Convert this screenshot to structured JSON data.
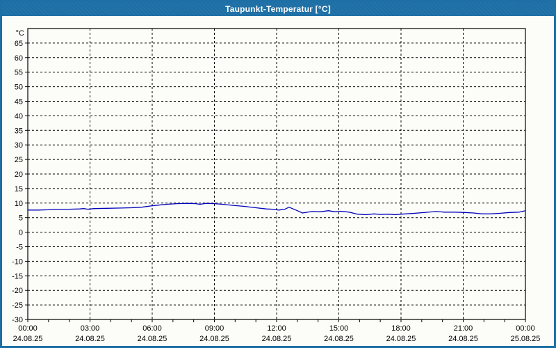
{
  "window": {
    "title": "Taupunkt-Temperatur [°C]"
  },
  "colors": {
    "titlebar_bg": "#1d6fa5",
    "window_border": "#1d6fa5",
    "plot_bg": "#fcfdf8",
    "grid": "#000000",
    "frame": "#000000",
    "label_text": "#000000",
    "series_line": "#0000bb"
  },
  "chart_data": {
    "type": "line",
    "title": "Taupunkt-Temperatur [°C]",
    "y_unit_label": "°C",
    "ylim": [
      -30,
      70
    ],
    "xlim_hours": [
      0,
      24
    ],
    "y_tick_step": 5,
    "y_label_min": -30,
    "y_label_max": 65,
    "x_grid_hours": [
      3,
      6,
      9,
      12,
      15,
      18,
      21
    ],
    "x_minor_tick_step_hours": 1,
    "grid_style": "dashed",
    "legend": "none",
    "x_ticks": [
      {
        "h": 0,
        "time": "00:00",
        "date": "24.08.25"
      },
      {
        "h": 3,
        "time": "03:00",
        "date": "24.08.25"
      },
      {
        "h": 6,
        "time": "06:00",
        "date": "24.08.25"
      },
      {
        "h": 9,
        "time": "09:00",
        "date": "24.08.25"
      },
      {
        "h": 12,
        "time": "12:00",
        "date": "24.08.25"
      },
      {
        "h": 15,
        "time": "15:00",
        "date": "24.08.25"
      },
      {
        "h": 18,
        "time": "18:00",
        "date": "24.08.25"
      },
      {
        "h": 21,
        "time": "21:00",
        "date": "24.08.25"
      },
      {
        "h": 24,
        "time": "00:00",
        "date": "25.08.25"
      }
    ],
    "series": [
      {
        "name": "Taupunkt-Temperatur",
        "color": "#0000bb",
        "points": [
          [
            0,
            7.6
          ],
          [
            0.5,
            7.6
          ],
          [
            1,
            7.7
          ],
          [
            1.3,
            7.9
          ],
          [
            2,
            7.9
          ],
          [
            2.5,
            8.0
          ],
          [
            2.7,
            8.1
          ],
          [
            2.9,
            7.9
          ],
          [
            3.2,
            8.1
          ],
          [
            3.8,
            8.2
          ],
          [
            4.5,
            8.3
          ],
          [
            5,
            8.4
          ],
          [
            5.5,
            8.6
          ],
          [
            5.9,
            9.0
          ],
          [
            6.3,
            9.3
          ],
          [
            6.7,
            9.6
          ],
          [
            7.2,
            9.8
          ],
          [
            7.7,
            9.9
          ],
          [
            8.1,
            9.8
          ],
          [
            8.3,
            9.6
          ],
          [
            8.6,
            9.9
          ],
          [
            9,
            9.8
          ],
          [
            9.4,
            9.6
          ],
          [
            9.9,
            9.2
          ],
          [
            10.4,
            8.9
          ],
          [
            11,
            8.4
          ],
          [
            11.5,
            8.0
          ],
          [
            11.8,
            7.9
          ],
          [
            12.1,
            7.6
          ],
          [
            12.4,
            7.9
          ],
          [
            12.6,
            8.6
          ],
          [
            13,
            7.4
          ],
          [
            13.25,
            6.6
          ],
          [
            13.7,
            7.1
          ],
          [
            14.1,
            7.0
          ],
          [
            14.5,
            7.4
          ],
          [
            14.8,
            7.0
          ],
          [
            15.1,
            7.2
          ],
          [
            15.5,
            6.9
          ],
          [
            15.9,
            6.2
          ],
          [
            16.3,
            6.0
          ],
          [
            16.7,
            6.3
          ],
          [
            17,
            6.1
          ],
          [
            17.4,
            6.2
          ],
          [
            17.7,
            6.0
          ],
          [
            18,
            6.2
          ],
          [
            18.5,
            6.4
          ],
          [
            19,
            6.7
          ],
          [
            19.7,
            7.1
          ],
          [
            20.1,
            6.9
          ],
          [
            20.6,
            6.9
          ],
          [
            21,
            6.8
          ],
          [
            21.5,
            6.6
          ],
          [
            21.9,
            6.3
          ],
          [
            22.3,
            6.3
          ],
          [
            22.8,
            6.5
          ],
          [
            23.3,
            6.8
          ],
          [
            23.7,
            6.9
          ],
          [
            24,
            7.4
          ]
        ]
      }
    ]
  }
}
